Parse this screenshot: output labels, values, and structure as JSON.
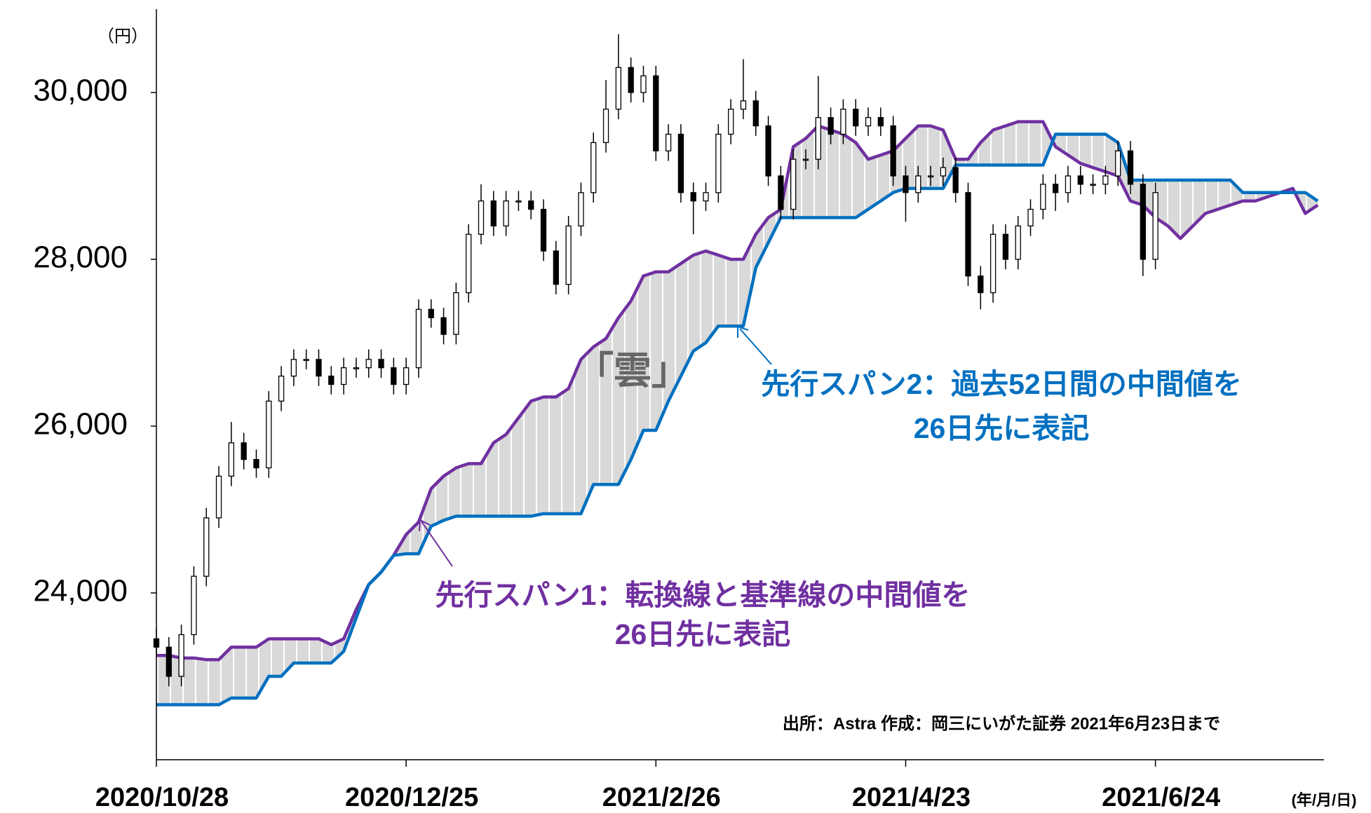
{
  "chart_data": {
    "type": "candlestick",
    "y_unit": "（円）",
    "x_unit": "(年/月/日)",
    "annotations": {
      "cloud": "「雲」",
      "span2_line1": "先行スパン2：過去52日間の中間値を",
      "span2_line2": "26日先に表記",
      "span1_line1": "先行スパン1：転換線と基準線の中間値を",
      "span1_line2": "26日先に表記",
      "source": "出所：Astra  作成：岡三にいがた証券  2021年6月23日まで"
    },
    "xlim": [
      0,
      187
    ],
    "xticks": [
      {
        "value": 0,
        "label": "2020/10/28"
      },
      {
        "value": 40,
        "label": "2020/12/25"
      },
      {
        "value": 80,
        "label": "2021/2/26"
      },
      {
        "value": 120,
        "label": "2021/4/23"
      },
      {
        "value": 160,
        "label": "2021/6/24"
      }
    ],
    "ylim": [
      22000,
      31000
    ],
    "yticks": [
      {
        "value": 24000,
        "label": "24,000"
      },
      {
        "value": 26000,
        "label": "26,000"
      },
      {
        "value": 28000,
        "label": "28,000"
      },
      {
        "value": 30000,
        "label": "30,000"
      }
    ],
    "up_color": "#ffffff",
    "down_color": "#000000",
    "cloud_color": "#d9d9d9",
    "x": [
      0,
      2,
      4,
      6,
      8,
      10,
      12,
      14,
      16,
      18,
      20,
      22,
      24,
      26,
      28,
      30,
      32,
      34,
      36,
      38,
      40,
      42,
      44,
      46,
      48,
      50,
      52,
      54,
      56,
      58,
      60,
      62,
      64,
      66,
      68,
      70,
      72,
      74,
      76,
      78,
      80,
      82,
      84,
      86,
      88,
      90,
      92,
      94,
      96,
      98,
      100,
      102,
      104,
      106,
      108,
      110,
      112,
      114,
      116,
      118,
      120,
      122,
      124,
      126,
      128,
      130,
      132,
      134,
      136,
      138,
      140,
      142,
      144,
      146,
      148,
      150,
      152,
      154,
      156,
      158,
      160
    ],
    "open": [
      23450,
      23350,
      23000,
      23500,
      24200,
      24900,
      25400,
      25800,
      25600,
      25500,
      26300,
      26600,
      26800,
      26800,
      26600,
      26500,
      26700,
      26700,
      26800,
      26700,
      26500,
      26700,
      27400,
      27300,
      27100,
      27600,
      28300,
      28700,
      28400,
      28700,
      28700,
      28600,
      28100,
      27700,
      28400,
      28800,
      29400,
      29800,
      30300,
      30000,
      30200,
      29300,
      29500,
      28800,
      28700,
      28800,
      29500,
      29800,
      29900,
      29600,
      29000,
      28600,
      29200,
      29200,
      29700,
      29500,
      29800,
      29600,
      29700,
      29600,
      29000,
      28800,
      29000,
      29000,
      29100,
      28800,
      27800,
      27600,
      28300,
      28000,
      28400,
      28600,
      28900,
      28800,
      29000,
      28900,
      28900,
      29000,
      29300,
      28900,
      28000
    ],
    "high": [
      23570,
      23470,
      23620,
      24320,
      25020,
      25520,
      26050,
      25920,
      25720,
      26420,
      26720,
      26920,
      26920,
      26920,
      26720,
      26820,
      26820,
      26920,
      26920,
      26820,
      26820,
      27520,
      27520,
      27420,
      27720,
      28420,
      28900,
      28820,
      28820,
      28820,
      28820,
      28720,
      28220,
      28520,
      28920,
      29520,
      30150,
      30700,
      30420,
      30320,
      30320,
      29620,
      29620,
      28920,
      28920,
      29620,
      29920,
      30400,
      30020,
      29720,
      29120,
      29320,
      29320,
      30200,
      29820,
      29920,
      29920,
      29820,
      29820,
      29720,
      29120,
      29120,
      29120,
      29220,
      29220,
      28920,
      27920,
      28420,
      28420,
      28520,
      28720,
      29020,
      29020,
      29120,
      29120,
      29020,
      29120,
      29420,
      29420,
      29020,
      28920
    ],
    "low": [
      23230,
      22880,
      22880,
      23380,
      24080,
      24780,
      25280,
      25480,
      25380,
      25380,
      26180,
      26480,
      26680,
      26480,
      26380,
      26380,
      26580,
      26580,
      26580,
      26380,
      26380,
      26580,
      27180,
      26980,
      26980,
      27480,
      28180,
      28280,
      28280,
      28580,
      28480,
      27980,
      27580,
      27580,
      28280,
      28680,
      29280,
      29680,
      29880,
      29880,
      29180,
      29180,
      28680,
      28300,
      28580,
      28680,
      29380,
      29680,
      29480,
      28880,
      28480,
      28480,
      29080,
      29080,
      29380,
      29380,
      29480,
      29480,
      29480,
      28880,
      28450,
      28680,
      28880,
      28880,
      28680,
      27680,
      27400,
      27480,
      27880,
      27880,
      28280,
      28480,
      28580,
      28680,
      28780,
      28780,
      28780,
      28880,
      28780,
      27800,
      27880
    ],
    "close": [
      23350,
      23000,
      23500,
      24200,
      24900,
      25400,
      25800,
      25600,
      25500,
      26300,
      26600,
      26800,
      26800,
      26600,
      26500,
      26700,
      26700,
      26800,
      26700,
      26500,
      26700,
      27400,
      27300,
      27100,
      27600,
      28300,
      28700,
      28400,
      28700,
      28700,
      28600,
      28100,
      27700,
      28400,
      28800,
      29400,
      29800,
      30300,
      30000,
      30200,
      29300,
      29500,
      28800,
      28700,
      28800,
      29500,
      29800,
      29900,
      29600,
      29000,
      28600,
      29200,
      29200,
      29700,
      29500,
      29800,
      29600,
      29700,
      29600,
      29000,
      28800,
      29000,
      29000,
      29100,
      28800,
      27800,
      27600,
      28300,
      28000,
      28400,
      28600,
      28900,
      28800,
      29000,
      28900,
      28900,
      29000,
      29300,
      28900,
      28000,
      28800
    ],
    "series": [
      {
        "color": "#7030a0",
        "x": [
          0,
          2,
          4,
          6,
          8,
          10,
          12,
          14,
          16,
          18,
          20,
          22,
          24,
          26,
          28,
          30,
          32,
          34,
          36,
          38,
          40,
          42,
          44,
          46,
          48,
          50,
          52,
          54,
          56,
          58,
          60,
          62,
          64,
          66,
          68,
          70,
          72,
          74,
          76,
          78,
          80,
          82,
          84,
          86,
          88,
          90,
          92,
          94,
          96,
          98,
          100,
          102,
          104,
          106,
          108,
          110,
          112,
          114,
          116,
          118,
          120,
          122,
          124,
          126,
          128,
          130,
          132,
          134,
          136,
          138,
          140,
          142,
          144,
          146,
          148,
          150,
          152,
          154,
          156,
          158,
          160,
          162,
          164,
          166,
          168,
          170,
          172,
          174,
          176,
          178,
          180,
          182,
          184,
          186
        ],
        "values": [
          23250,
          23250,
          23220,
          23220,
          23200,
          23200,
          23350,
          23350,
          23350,
          23450,
          23450,
          23450,
          23450,
          23450,
          23380,
          23450,
          23800,
          24100,
          24250,
          24450,
          24700,
          24850,
          25250,
          25400,
          25500,
          25550,
          25550,
          25800,
          25900,
          26100,
          26300,
          26350,
          26350,
          26450,
          26800,
          26950,
          27050,
          27300,
          27500,
          27800,
          27850,
          27850,
          27950,
          28050,
          28100,
          28050,
          28000,
          28000,
          28300,
          28500,
          28600,
          29350,
          29450,
          29600,
          29550,
          29500,
          29400,
          29200,
          29250,
          29300,
          29450,
          29600,
          29600,
          29550,
          29200,
          29200,
          29400,
          29550,
          29600,
          29650,
          29650,
          29650,
          29350,
          29250,
          29150,
          29100,
          29050,
          29000,
          28700,
          28650,
          28500,
          28400,
          28250,
          28400,
          28550,
          28600,
          28650,
          28700,
          28700,
          28750,
          28800,
          28850,
          28550,
          28650
        ]
      },
      {
        "color": "#0070c0",
        "x": [
          0,
          2,
          4,
          6,
          8,
          10,
          12,
          14,
          16,
          18,
          20,
          22,
          24,
          26,
          28,
          30,
          32,
          34,
          36,
          38,
          40,
          42,
          44,
          46,
          48,
          50,
          52,
          54,
          56,
          58,
          60,
          62,
          64,
          66,
          68,
          70,
          72,
          74,
          76,
          78,
          80,
          82,
          84,
          86,
          88,
          90,
          92,
          94,
          96,
          98,
          100,
          102,
          104,
          106,
          108,
          110,
          112,
          114,
          116,
          118,
          120,
          122,
          124,
          126,
          128,
          130,
          132,
          134,
          136,
          138,
          140,
          142,
          144,
          146,
          148,
          150,
          152,
          154,
          156,
          158,
          160,
          162,
          164,
          166,
          168,
          170,
          172,
          174,
          176,
          178,
          180,
          182,
          184,
          186
        ],
        "values": [
          22660,
          22660,
          22660,
          22660,
          22660,
          22660,
          22740,
          22740,
          22740,
          23000,
          23000,
          23160,
          23160,
          23160,
          23160,
          23300,
          23700,
          24100,
          24250,
          24450,
          24470,
          24470,
          24800,
          24870,
          24920,
          24920,
          24920,
          24920,
          24920,
          24920,
          24920,
          24950,
          24950,
          24950,
          24950,
          25300,
          25300,
          25300,
          25600,
          25950,
          25950,
          26300,
          26600,
          26900,
          27000,
          27200,
          27200,
          27200,
          27900,
          28200,
          28500,
          28500,
          28500,
          28500,
          28500,
          28500,
          28500,
          28600,
          28700,
          28800,
          28850,
          28850,
          28850,
          28850,
          29130,
          29130,
          29130,
          29130,
          29130,
          29130,
          29130,
          29130,
          29500,
          29500,
          29500,
          29500,
          29500,
          29400,
          28950,
          28950,
          28950,
          28950,
          28950,
          28950,
          28950,
          28950,
          28950,
          28800,
          28800,
          28800,
          28800,
          28800,
          28800,
          28700
        ]
      }
    ]
  }
}
